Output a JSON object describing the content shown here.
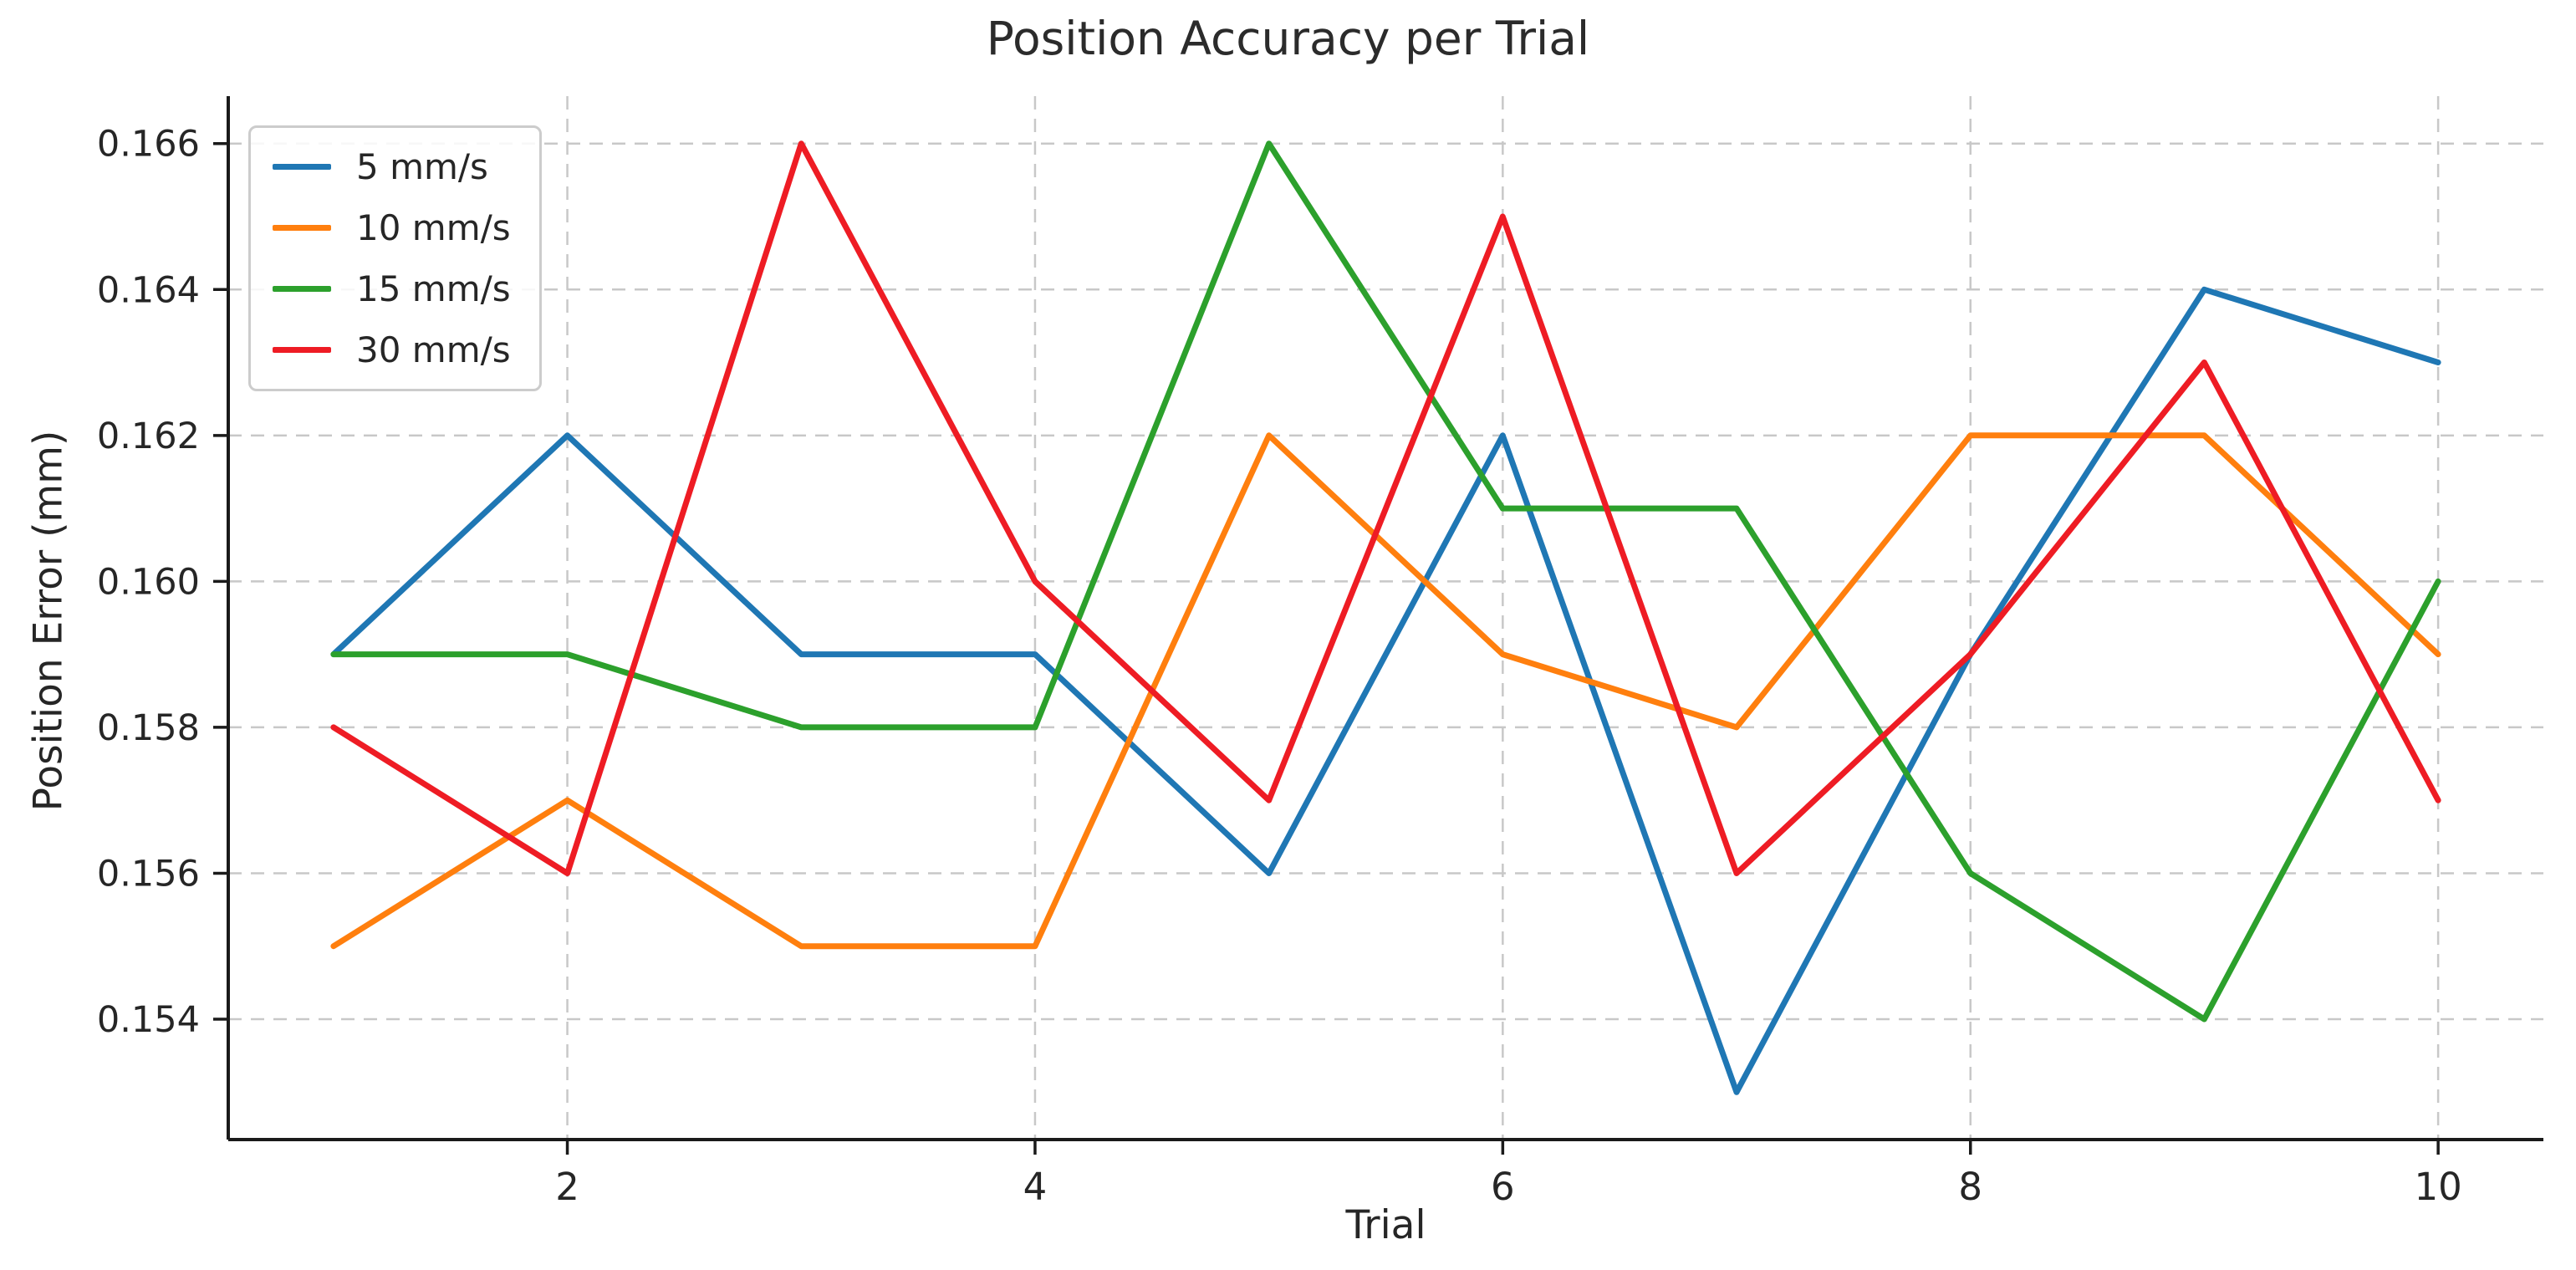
{
  "chart_data": {
    "type": "line",
    "title": "Position Accuracy per Trial",
    "xlabel": "Trial",
    "ylabel": "Position Error (mm)",
    "x": [
      1,
      2,
      3,
      4,
      5,
      6,
      7,
      8,
      9,
      10
    ],
    "series": [
      {
        "name": "5 mm/s",
        "color": "#1f77b4",
        "values": [
          0.159,
          0.162,
          0.159,
          0.159,
          0.156,
          0.162,
          0.153,
          0.159,
          0.164,
          0.163
        ]
      },
      {
        "name": "10 mm/s",
        "color": "#ff7f0e",
        "values": [
          0.155,
          0.157,
          0.155,
          0.155,
          0.162,
          0.159,
          0.158,
          0.162,
          0.162,
          0.159
        ]
      },
      {
        "name": "15 mm/s",
        "color": "#2ca02c",
        "values": [
          0.159,
          0.159,
          0.158,
          0.158,
          0.166,
          0.161,
          0.161,
          0.156,
          0.154,
          0.16
        ]
      },
      {
        "name": "30 mm/s",
        "color": "#ee1c24",
        "values": [
          0.158,
          0.156,
          0.166,
          0.16,
          0.157,
          0.165,
          0.156,
          0.159,
          0.163,
          0.157
        ]
      }
    ],
    "x_ticks": [
      2,
      4,
      6,
      8,
      10
    ],
    "x_tick_labels": [
      "2",
      "4",
      "6",
      "8",
      "10"
    ],
    "y_ticks": [
      0.154,
      0.156,
      0.158,
      0.16,
      0.162,
      0.164,
      0.166
    ],
    "y_tick_labels": [
      "0.154",
      "0.156",
      "0.158",
      "0.160",
      "0.162",
      "0.164",
      "0.166"
    ],
    "xlim": [
      0.55,
      10.45
    ],
    "ylim": [
      0.15235,
      0.16665
    ],
    "grid": "dashed both axes",
    "legend_position": "upper left"
  },
  "style": {
    "background": "#ffffff",
    "grid_color": "#c8c8c8",
    "axis_color": "#1a1a1a",
    "tick_label_color": "#262626",
    "title_color": "#2b2b2b",
    "legend_border": "#cccccc",
    "line_width": 7
  }
}
